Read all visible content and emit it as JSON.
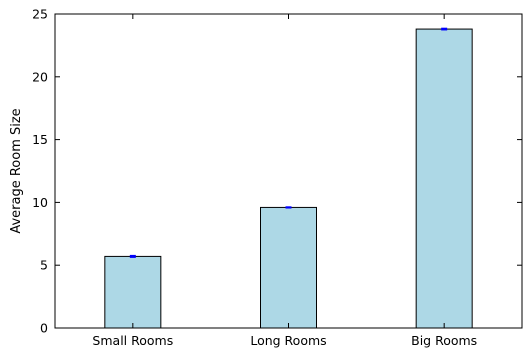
{
  "chart_data": {
    "type": "bar",
    "categories": [
      "Small Rooms",
      "Long Rooms",
      "Big Rooms"
    ],
    "values": [
      5.7,
      9.6,
      23.8
    ],
    "errors": [
      0.06,
      0.03,
      0.05
    ],
    "title": "",
    "xlabel": "",
    "ylabel": "Average Room Size",
    "ylim": [
      0,
      25
    ],
    "yticks": [
      0,
      5,
      10,
      15,
      20,
      25
    ],
    "grid": false,
    "bar_color": "#add8e6",
    "bar_edge_color": "#000000",
    "error_color": "#0000ff"
  }
}
